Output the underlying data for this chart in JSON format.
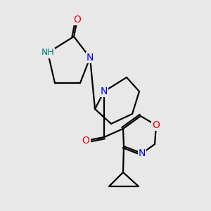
{
  "background_color": "#e8e8e8",
  "bond_color": "#000000",
  "atom_colors": {
    "N": "#0000ff",
    "O": "#ff0000",
    "NH": "#008080",
    "C": "#000000"
  },
  "figsize": [
    3.0,
    3.0
  ],
  "dpi": 100
}
